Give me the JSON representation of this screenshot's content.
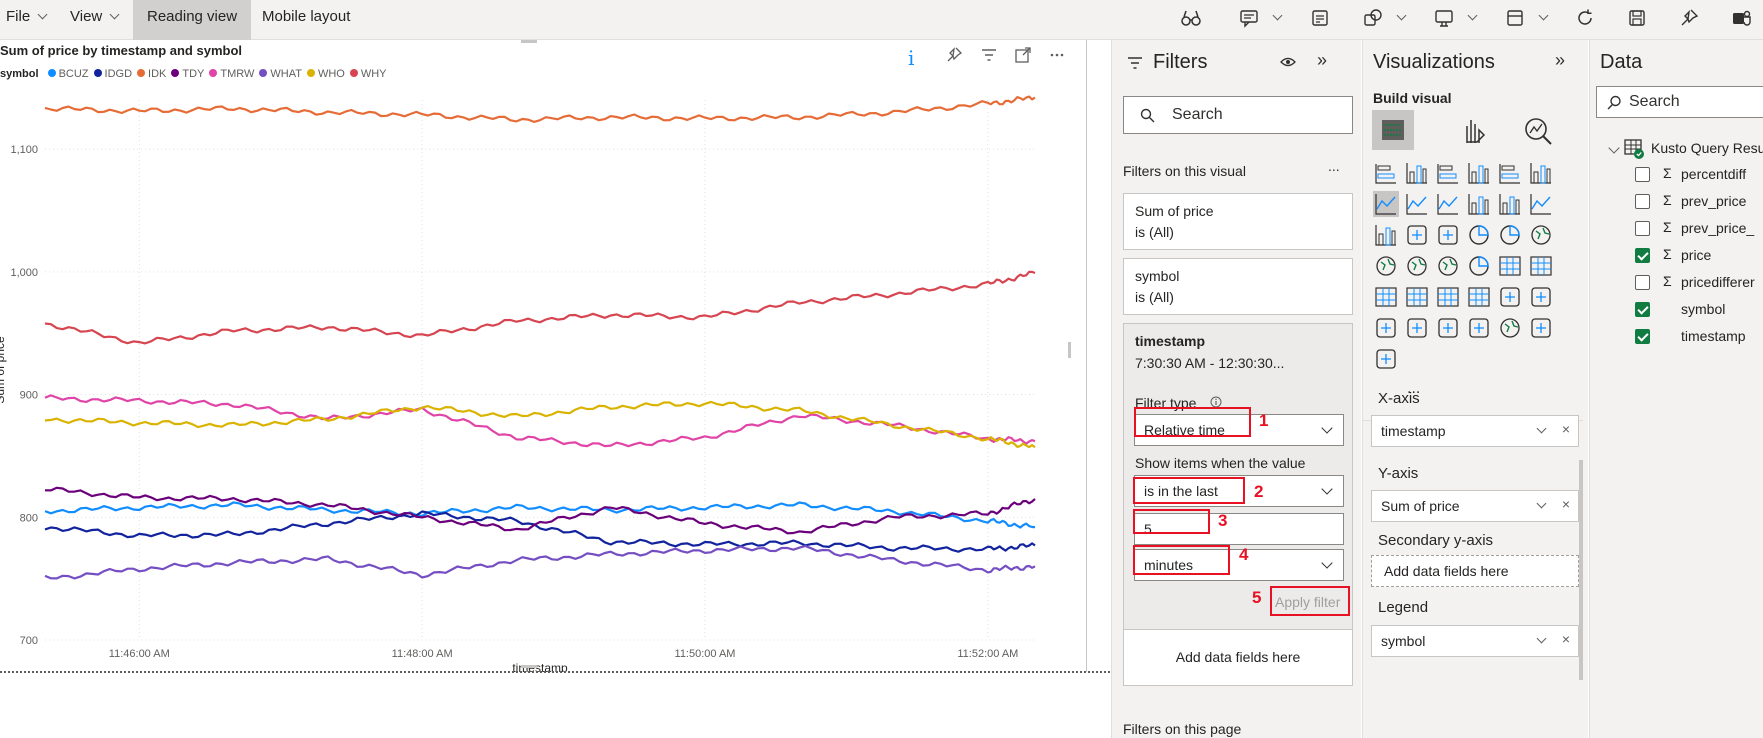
{
  "menu": {
    "file": "File",
    "view": "View",
    "reading_view": "Reading view",
    "mobile_layout": "Mobile layout"
  },
  "visual": {
    "title": "Sum of price by timestamp and symbol",
    "legend_label": "symbol",
    "info_icon": "i"
  },
  "chart_data": {
    "type": "line",
    "title": "Sum of price by timestamp and symbol",
    "xlabel": "timestamp",
    "ylabel": "Sum of price",
    "x_ticks": [
      "11:46:00 AM",
      "11:48:00 AM",
      "11:50:00 AM",
      "11:52:00 AM"
    ],
    "y_ticks": [
      "700",
      "800",
      "900",
      "1,000",
      "1,100"
    ],
    "ylim": [
      700,
      1140
    ],
    "x": [
      "11:45:20",
      "11:46:00",
      "11:46:40",
      "11:47:20",
      "11:48:00",
      "11:48:40",
      "11:49:20",
      "11:50:00",
      "11:50:40",
      "11:51:20",
      "11:52:00",
      "11:52:20"
    ],
    "series": [
      {
        "name": "BCUZ",
        "color": "#118dff",
        "values": [
          805,
          808,
          810,
          806,
          803,
          808,
          806,
          808,
          810,
          805,
          797,
          792
        ]
      },
      {
        "name": "IDGD",
        "color": "#12239e",
        "values": [
          792,
          785,
          786,
          795,
          803,
          797,
          780,
          778,
          779,
          775,
          774,
          777
        ]
      },
      {
        "name": "IDK",
        "color": "#e66c37",
        "values": [
          1133,
          1131,
          1133,
          1130,
          1128,
          1124,
          1126,
          1125,
          1126,
          1130,
          1137,
          1142
        ]
      },
      {
        "name": "TDY",
        "color": "#6b007b",
        "values": [
          823,
          816,
          815,
          810,
          800,
          790,
          808,
          795,
          788,
          800,
          803,
          815
        ]
      },
      {
        "name": "TMRW",
        "color": "#e044a7",
        "values": [
          897,
          895,
          892,
          880,
          888,
          865,
          858,
          865,
          883,
          875,
          864,
          862
        ]
      },
      {
        "name": "WHAT",
        "color": "#744ec2",
        "values": [
          750,
          758,
          763,
          766,
          753,
          765,
          770,
          773,
          775,
          765,
          757,
          760
        ]
      },
      {
        "name": "WHO",
        "color": "#d9b300",
        "values": [
          880,
          877,
          875,
          880,
          890,
          882,
          890,
          893,
          887,
          875,
          864,
          857
        ]
      },
      {
        "name": "WHY",
        "color": "#d64550",
        "values": [
          958,
          942,
          952,
          955,
          948,
          960,
          965,
          963,
          975,
          982,
          990,
          999
        ]
      }
    ]
  },
  "filters": {
    "title": "Filters",
    "search_placeholder": "Search",
    "on_visual": "Filters on this visual",
    "cards": [
      {
        "field": "Sum of price",
        "state": "is (All)"
      },
      {
        "field": "symbol",
        "state": "is (All)"
      }
    ],
    "timestamp_card": {
      "field": "timestamp",
      "range": "7:30:30 AM - 12:30:30...",
      "filter_type_label": "Filter type",
      "filter_type_value": "Relative time",
      "show_items_label": "Show items when the value",
      "condition_value": "is in the last",
      "number_value": "5",
      "unit_value": "minutes",
      "apply": "Apply filter"
    },
    "add_fields": "Add data fields here",
    "on_page": "Filters on this page",
    "step_numbers": [
      "1",
      "2",
      "3",
      "4",
      "5"
    ]
  },
  "visualizations": {
    "title": "Visualizations",
    "build_visual": "Build visual",
    "more": "...",
    "wells": [
      {
        "label": "X-axis",
        "value": "timestamp"
      },
      {
        "label": "Y-axis",
        "value": "Sum of price"
      },
      {
        "label": "Secondary y-axis",
        "value": "Add data fields here"
      },
      {
        "label": "Legend",
        "value": "symbol"
      }
    ]
  },
  "data_pane": {
    "title": "Data",
    "search_placeholder": "Search",
    "table": "Kusto Query Resu",
    "fields": [
      {
        "name": "percentdiff",
        "sigma": true,
        "checked": false
      },
      {
        "name": "prev_price",
        "sigma": true,
        "checked": false
      },
      {
        "name": "prev_price_",
        "sigma": true,
        "checked": false
      },
      {
        "name": "price",
        "sigma": true,
        "checked": true
      },
      {
        "name": "pricedifferer",
        "sigma": true,
        "checked": false
      },
      {
        "name": "symbol",
        "sigma": false,
        "checked": true
      },
      {
        "name": "timestamp",
        "sigma": false,
        "checked": true
      }
    ]
  }
}
